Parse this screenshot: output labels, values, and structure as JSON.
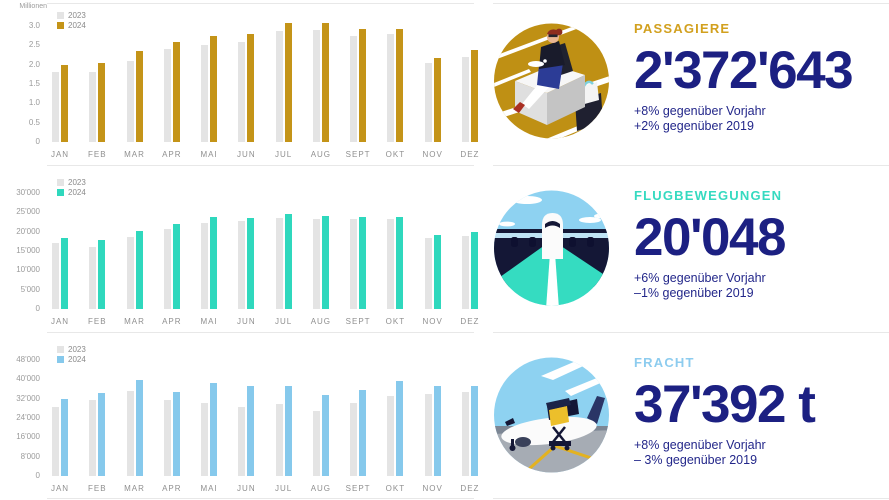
{
  "page": {
    "background_color": "#FFFFFF",
    "separator_color": "#E8E8E8",
    "accent_navy": "#1C2082"
  },
  "chart_data": [
    {
      "type": "bar",
      "unit_label": "Millionen",
      "categories": [
        "JAN",
        "FEB",
        "MAR",
        "APR",
        "MAI",
        "JUN",
        "JUL",
        "AUG",
        "SEPT",
        "OKT",
        "NOV",
        "DEZ"
      ],
      "series": [
        {
          "name": "2023",
          "color": "#E4E4E4",
          "values": [
            1.8,
            1.8,
            2.1,
            2.4,
            2.5,
            2.6,
            2.88,
            2.9,
            2.75,
            2.8,
            2.05,
            2.2
          ]
        },
        {
          "name": "2024",
          "color": "#C49418",
          "values": [
            2.0,
            2.05,
            2.35,
            2.6,
            2.75,
            2.8,
            3.07,
            3.07,
            2.92,
            2.93,
            2.17,
            2.37
          ]
        }
      ],
      "y_ticks": [
        "0",
        "0.5",
        "1.0",
        "1.5",
        "2.0",
        "2.5",
        "3.0"
      ],
      "y_max": 3.0,
      "grid": false,
      "legend_position": "top-left"
    },
    {
      "type": "bar",
      "unit_label": "",
      "categories": [
        "JAN",
        "FEB",
        "MAR",
        "APR",
        "MAI",
        "JUN",
        "JUL",
        "AUG",
        "SEPT",
        "OKT",
        "NOV",
        "DEZ"
      ],
      "series": [
        {
          "name": "2023",
          "color": "#E4E4E4",
          "values": [
            17100,
            16000,
            18700,
            20600,
            22300,
            22800,
            23600,
            23400,
            23300,
            23400,
            18400,
            18900
          ]
        },
        {
          "name": "2024",
          "color": "#2FD8BD",
          "values": [
            18500,
            17900,
            20200,
            22100,
            23900,
            23600,
            24700,
            24100,
            23800,
            23900,
            19200,
            20048
          ]
        }
      ],
      "y_ticks": [
        "0",
        "5'000",
        "10'000",
        "15'000",
        "20'000",
        "25'000",
        "30'000"
      ],
      "y_max": 30000,
      "grid": false,
      "legend_position": "top-left"
    },
    {
      "type": "bar",
      "unit_label": "",
      "categories": [
        "JAN",
        "FEB",
        "MAR",
        "APR",
        "MAI",
        "JUN",
        "JUL",
        "AUG",
        "SEPT",
        "OKT",
        "NOV",
        "DEZ"
      ],
      "series": [
        {
          "name": "2023",
          "color": "#E4E4E4",
          "values": [
            28400,
            31500,
            35200,
            31500,
            30400,
            28600,
            29900,
            27100,
            30400,
            33200,
            34000,
            34900
          ]
        },
        {
          "name": "2024",
          "color": "#86C9EC",
          "values": [
            31800,
            34200,
            39700,
            34700,
            38300,
            37200,
            37100,
            33500,
            35400,
            39500,
            37400,
            37392
          ]
        }
      ],
      "y_ticks": [
        "0",
        "8'000",
        "16'000",
        "24'000",
        "32'000",
        "40'000",
        "48'000"
      ],
      "y_max": 48000,
      "grid": false,
      "legend_position": "top-left"
    }
  ],
  "panels": [
    {
      "title": "PASSAGIERE",
      "accent_color": "#D2A01E",
      "value": "2'372'643",
      "vs_prev_year": "+8% gegenüber Vorjahr",
      "vs_2019": "+2% gegenüber 2019",
      "illustration": "passenger-waiting-with-luggage"
    },
    {
      "title": "FLUGBEWEGUNGEN",
      "accent_color": "#35DAC0",
      "value": "20'048",
      "vs_prev_year": "+6% gegenüber Vorjahr",
      "vs_2019": "–1% gegenüber 2019",
      "illustration": "airplane-front-view-on-runway"
    },
    {
      "title": "FRACHT",
      "accent_color": "#8DCCEF",
      "value": "37'392 t",
      "vs_prev_year": "+8% gegenüber Vorjahr",
      "vs_2019": "– 3% gegenüber 2019",
      "illustration": "cargo-loading-at-airplane"
    }
  ]
}
